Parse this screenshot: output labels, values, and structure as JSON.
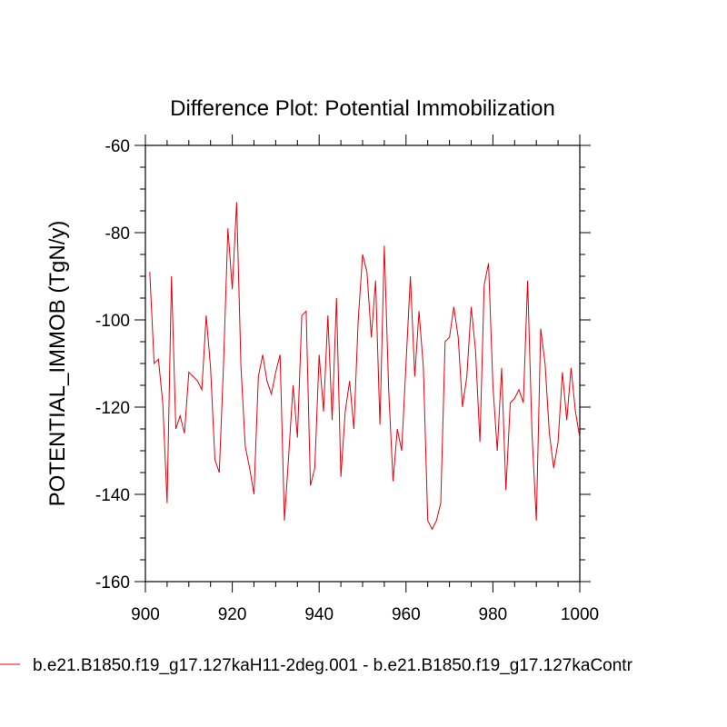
{
  "chart_data": {
    "type": "line",
    "title": "Difference Plot: Potential Immobilization",
    "xlabel": "",
    "ylabel": "POTENTIAL_IMMOB  (TgN/y)",
    "xlim": [
      900,
      1000
    ],
    "ylim": [
      -160,
      -60
    ],
    "x_ticks": [
      900,
      920,
      940,
      960,
      980,
      1000
    ],
    "y_ticks": [
      -160,
      -140,
      -120,
      -100,
      -80,
      -60
    ],
    "grid": false,
    "legend_position": "bottom",
    "series": [
      {
        "name": "b.e21.B1850.f19_g17.127kaH11-2deg.001 - b.e21.B1850.f19_g17.127kaContr",
        "color": "#e8000b",
        "x": [
          901,
          902,
          903,
          904,
          905,
          906,
          907,
          908,
          909,
          910,
          911,
          912,
          913,
          914,
          915,
          916,
          917,
          918,
          919,
          920,
          921,
          922,
          923,
          924,
          925,
          926,
          927,
          928,
          929,
          930,
          931,
          932,
          933,
          934,
          935,
          936,
          937,
          938,
          939,
          940,
          941,
          942,
          943,
          944,
          945,
          946,
          947,
          948,
          949,
          950,
          951,
          952,
          953,
          954,
          955,
          956,
          957,
          958,
          959,
          960,
          961,
          962,
          963,
          964,
          965,
          966,
          967,
          968,
          969,
          970,
          971,
          972,
          973,
          974,
          975,
          976,
          977,
          978,
          979,
          980,
          981,
          982,
          983,
          984,
          985,
          986,
          987,
          988,
          989,
          990,
          991,
          992,
          993,
          994,
          995,
          996,
          997,
          998,
          999,
          1000
        ],
        "y": [
          -89,
          -110,
          -109,
          -119,
          -142,
          -90,
          -125,
          -122,
          -126,
          -112,
          -113,
          -114,
          -116,
          -99,
          -111,
          -132,
          -135,
          -110,
          -79,
          -93,
          -73,
          -111,
          -129,
          -134,
          -140,
          -113,
          -108,
          -114,
          -117,
          -112,
          -108,
          -146,
          -131,
          -115,
          -127,
          -99,
          -98,
          -138,
          -134,
          -108,
          -121,
          -99,
          -123,
          -95,
          -136,
          -121,
          -114,
          -125,
          -100,
          -85,
          -89,
          -104,
          -91,
          -124,
          -83,
          -116,
          -137,
          -125,
          -130,
          -110,
          -90,
          -113,
          -98,
          -111,
          -146,
          -148,
          -146,
          -142,
          -105,
          -104,
          -97,
          -104,
          -120,
          -113,
          -97,
          -107,
          -128,
          -92,
          -87,
          -115,
          -130,
          -111,
          -139,
          -119,
          -118,
          -116,
          -119,
          -91,
          -126,
          -146,
          -102,
          -110,
          -126,
          -134,
          -128,
          -112,
          -123,
          -111,
          -121,
          -127
        ]
      }
    ]
  }
}
